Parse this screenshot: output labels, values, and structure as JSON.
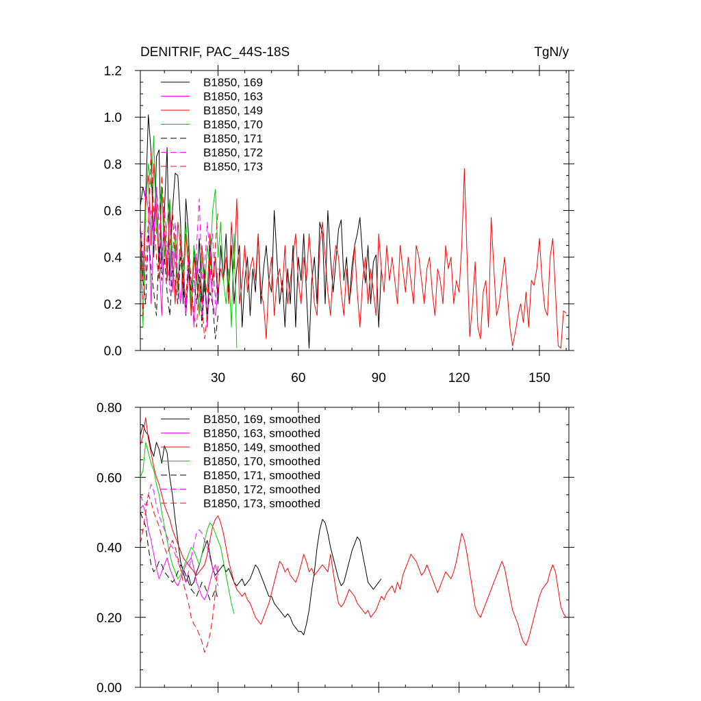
{
  "chart_data": [
    {
      "type": "line",
      "title_left": "DENITRIF, PAC_44S-18S",
      "title_right": "TgN/y",
      "xlim": [
        1,
        161
      ],
      "ylim": [
        0,
        1.2
      ],
      "xticks": [
        30,
        60,
        90,
        120,
        150
      ],
      "xtick_labels": [
        "30",
        "60",
        "90",
        "120",
        "150"
      ],
      "yticks": [
        0,
        0.2,
        0.4,
        0.6,
        0.8,
        1.0,
        1.2
      ],
      "ytick_labels": [
        "0.0",
        "0.2",
        "0.4",
        "0.6",
        "0.8",
        "1.0",
        "1.2"
      ],
      "series": [
        {
          "name": "B1850, 169",
          "color": "#000000",
          "dash": false,
          "values": [
            0.62,
            0.7,
            0.65,
            1.01,
            0.85,
            0.4,
            0.83,
            0.86,
            0.35,
            0.6,
            0.87,
            0.3,
            0.6,
            0.76,
            0.75,
            0.55,
            0.2,
            0.65,
            0.5,
            0.15,
            0.45,
            0.3,
            0.48,
            0.2,
            0.35,
            0.1,
            0.45,
            0.3,
            0.4,
            0.2,
            0.45,
            0.3,
            0.5,
            0.25,
            0.45,
            0.2,
            0.35,
            0.45,
            0.1,
            0.3,
            0.4,
            0.15,
            0.35,
            0.25,
            0.5,
            0.2,
            0.35,
            0.45,
            0.3,
            0.25,
            0.6,
            0.4,
            0.2,
            0.3,
            0.1,
            0.35,
            0.2,
            0.45,
            0.1,
            0.4,
            0.3,
            0.5,
            0.25,
            0.01,
            0.3,
            0.4,
            0.2,
            0.55,
            0.5,
            0.2,
            0.6,
            0.4,
            0.25,
            0.38,
            0.52,
            0.56,
            0.3,
            0.4,
            0.2,
            0.36,
            0.45,
            0.5,
            0.57,
            0.4,
            0.29,
            0.45,
            0.2,
            0.38,
            0.41,
            0.1,
            0.35
          ]
        },
        {
          "name": "B1850, 163",
          "color": "#ff00ff",
          "dash": false,
          "values": [
            0.45,
            0.3,
            0.7,
            0.6,
            0.2,
            0.55,
            0.7,
            0.4,
            0.15,
            0.5,
            0.35,
            0.6,
            0.25,
            0.45,
            0.3,
            0.2,
            0.4,
            0.15,
            0.35,
            0.3,
            0.1,
            0.4,
            0.25,
            0.15,
            0.3,
            0.1,
            0.35,
            0.2,
            0.15,
            0.25
          ]
        },
        {
          "name": "B1850, 149",
          "color": "#ff0000",
          "dash": false,
          "values": [
            0.55,
            0.3,
            0.65,
            0.75,
            0.45,
            0.8,
            0.6,
            0.35,
            0.7,
            0.5,
            0.3,
            0.65,
            0.4,
            0.2,
            0.55,
            0.45,
            0.25,
            0.5,
            0.35,
            0.15,
            0.4,
            0.3,
            0.15,
            0.45,
            0.3,
            0.25,
            0.5,
            0.3,
            0.4,
            0.25,
            0.35,
            0.3,
            0.4,
            0.2,
            0.55,
            0.35,
            0.65,
            0.2,
            0.3,
            0.45,
            0.25,
            0.35,
            0.4,
            0.3,
            0.5,
            0.25,
            0.2,
            0.05,
            0.3,
            0.4,
            0.15,
            0.3,
            0.35,
            0.25,
            0.45,
            0.2,
            0.3,
            0.4,
            0.5,
            0.3,
            0.2,
            0.4,
            0.3,
            0.5,
            0.35,
            0.2,
            0.15,
            0.45,
            0.55,
            0.4,
            0.25,
            0.15,
            0.35,
            0.45,
            0.4,
            0.25,
            0.15,
            0.35,
            0.2,
            0.3,
            0.45,
            0.25,
            0.1,
            0.3,
            0.4,
            0.2,
            0.35,
            0.25,
            0.15,
            0.5,
            0.35,
            0.25,
            0.45,
            0.3,
            0.4,
            0.3,
            0.2,
            0.45,
            0.35,
            0.25,
            0.4,
            0.3,
            0.2,
            0.45,
            0.4,
            0.3,
            0.2,
            0.35,
            0.4,
            0.25,
            0.15,
            0.35,
            0.3,
            0.2,
            0.45,
            0.35,
            0.4,
            0.2,
            0.3,
            0.25,
            0.45,
            0.78,
            0.4,
            0.06,
            0.2,
            0.38,
            0.1,
            0.05,
            0.25,
            0.3,
            0.1,
            0.57,
            0.35,
            0.15,
            0.2,
            0.3,
            0.4,
            0.25,
            0.1,
            0.02,
            0.08,
            0.15,
            0.2,
            0.12,
            0.25,
            0.1,
            0.3,
            0.28,
            0.35,
            0.48,
            0.3,
            0.18,
            0.15,
            0.4,
            0.48,
            0.25,
            0.02,
            0.01,
            0.17,
            0.16
          ]
        },
        {
          "name": "B1850, 170",
          "color": "#00cc00",
          "dash": false,
          "values": [
            0.5,
            0.1,
            0.6,
            0.8,
            0.7,
            0.92,
            0.5,
            0.6,
            0.7,
            0.4,
            0.55,
            0.65,
            0.35,
            0.5,
            0.25,
            0.45,
            0.3,
            0.55,
            0.4,
            0.2,
            0.45,
            0.35,
            0.15,
            0.4,
            0.25,
            0.45,
            0.35,
            0.6,
            0.69,
            0.4,
            0.55,
            0.3,
            0.2,
            0.35,
            0.1,
            0.5,
            0.01
          ]
        },
        {
          "name": "B1850, 171",
          "color": "#000000",
          "dash": true,
          "values": [
            0.55,
            0.3,
            0.2,
            0.5,
            0.35,
            0.25,
            0.15,
            0.45,
            0.3,
            0.4,
            0.25,
            0.15,
            0.35,
            0.3,
            0.2,
            0.4,
            0.3,
            0.15,
            0.35,
            0.25,
            0.3,
            0.2,
            0.35,
            0.1,
            0.3,
            0.15,
            0.25,
            0.2,
            0.05,
            0.15
          ]
        },
        {
          "name": "B1850, 172",
          "color": "#ff00ff",
          "dash": true,
          "values": [
            0.55,
            0.4,
            0.3,
            0.5,
            0.6,
            0.45,
            0.7,
            0.55,
            0.35,
            0.6,
            0.45,
            0.25,
            0.4,
            0.55,
            0.3,
            0.45,
            0.35,
            0.15,
            0.4,
            0.3,
            0.25,
            0.45,
            0.65,
            0.3,
            0.35,
            0.55,
            0.4,
            0.5,
            0.2,
            0.35
          ]
        },
        {
          "name": "B1850, 173",
          "color": "#ff0000",
          "dash": true,
          "values": [
            0.45,
            0.15,
            0.4,
            0.55,
            0.85,
            0.6,
            0.4,
            0.3,
            0.75,
            0.55,
            0.35,
            0.45,
            0.6,
            0.4,
            0.25,
            0.5,
            0.35,
            0.2,
            0.45,
            0.3,
            0.15,
            0.1,
            0.3,
            0.2,
            0.05,
            0.15,
            0.4,
            0.25,
            0.45,
            0.6
          ]
        }
      ]
    },
    {
      "type": "line",
      "xlim": [
        1,
        161
      ],
      "ylim": [
        0,
        0.8
      ],
      "xticks": [
        30,
        60,
        90,
        120,
        150
      ],
      "yticks": [
        0,
        0.2,
        0.4,
        0.6,
        0.8
      ],
      "ytick_labels": [
        "0.00",
        "0.20",
        "0.40",
        "0.60",
        "0.80"
      ],
      "series": [
        {
          "name": "B1850, 169, smoothed",
          "color": "#000000",
          "dash": false,
          "values": [
            0.72,
            0.75,
            0.73,
            0.72,
            0.68,
            0.66,
            0.7,
            0.68,
            0.64,
            0.69,
            0.67,
            0.6,
            0.55,
            0.48,
            0.42,
            0.36,
            0.33,
            0.3,
            0.32,
            0.29,
            0.3,
            0.33,
            0.35,
            0.38,
            0.4,
            0.42,
            0.38,
            0.34,
            0.32,
            0.33,
            0.34,
            0.35,
            0.33,
            0.34,
            0.32,
            0.3,
            0.29,
            0.3,
            0.31,
            0.29,
            0.3,
            0.31,
            0.33,
            0.35,
            0.34,
            0.32,
            0.3,
            0.28,
            0.26,
            0.26,
            0.24,
            0.23,
            0.22,
            0.21,
            0.2,
            0.21,
            0.2,
            0.18,
            0.17,
            0.16,
            0.16,
            0.15,
            0.18,
            0.22,
            0.28,
            0.33,
            0.4,
            0.45,
            0.48,
            0.47,
            0.44,
            0.4,
            0.37,
            0.34,
            0.31,
            0.29,
            0.3,
            0.33,
            0.36,
            0.39,
            0.41,
            0.43,
            0.42,
            0.38,
            0.34,
            0.3,
            0.29,
            0.28,
            0.29,
            0.3,
            0.31
          ]
        },
        {
          "name": "B1850, 163, smoothed",
          "color": "#ff00ff",
          "dash": false,
          "values": [
            0.51,
            0.52,
            0.5,
            0.45,
            0.42,
            0.38,
            0.34,
            0.31,
            0.33,
            0.35,
            0.37,
            0.34,
            0.32,
            0.3,
            0.29,
            0.31,
            0.33,
            0.35,
            0.36,
            0.37,
            0.34,
            0.3,
            0.28,
            0.26,
            0.25,
            0.27,
            0.3,
            0.33,
            0.35,
            0.32
          ]
        },
        {
          "name": "B1850, 149, smoothed",
          "color": "#ff0000",
          "dash": false,
          "values": [
            0.69,
            0.72,
            0.77,
            0.71,
            0.67,
            0.63,
            0.6,
            0.58,
            0.55,
            0.52,
            0.5,
            0.48,
            0.45,
            0.43,
            0.41,
            0.39,
            0.37,
            0.36,
            0.35,
            0.34,
            0.33,
            0.32,
            0.33,
            0.34,
            0.35,
            0.38,
            0.42,
            0.46,
            0.48,
            0.49,
            0.47,
            0.44,
            0.4,
            0.36,
            0.33,
            0.3,
            0.28,
            0.27,
            0.26,
            0.27,
            0.25,
            0.24,
            0.22,
            0.2,
            0.19,
            0.18,
            0.2,
            0.22,
            0.24,
            0.27,
            0.3,
            0.33,
            0.36,
            0.35,
            0.33,
            0.34,
            0.32,
            0.31,
            0.3,
            0.32,
            0.35,
            0.38,
            0.36,
            0.33,
            0.34,
            0.32,
            0.33,
            0.34,
            0.35,
            0.34,
            0.33,
            0.38,
            0.33,
            0.28,
            0.24,
            0.23,
            0.24,
            0.26,
            0.28,
            0.27,
            0.26,
            0.24,
            0.23,
            0.22,
            0.21,
            0.22,
            0.2,
            0.21,
            0.22,
            0.24,
            0.26,
            0.25,
            0.27,
            0.28,
            0.29,
            0.27,
            0.3,
            0.28,
            0.32,
            0.34,
            0.36,
            0.38,
            0.37,
            0.36,
            0.34,
            0.32,
            0.33,
            0.35,
            0.33,
            0.31,
            0.29,
            0.27,
            0.29,
            0.31,
            0.33,
            0.32,
            0.31,
            0.33,
            0.36,
            0.4,
            0.44,
            0.42,
            0.38,
            0.33,
            0.28,
            0.23,
            0.21,
            0.2,
            0.22,
            0.24,
            0.26,
            0.28,
            0.3,
            0.32,
            0.34,
            0.36,
            0.34,
            0.3,
            0.26,
            0.22,
            0.2,
            0.18,
            0.15,
            0.13,
            0.12,
            0.14,
            0.17,
            0.2,
            0.23,
            0.26,
            0.28,
            0.29,
            0.3,
            0.33,
            0.35,
            0.33,
            0.28,
            0.23,
            0.21,
            0.2
          ]
        },
        {
          "name": "B1850, 170, smoothed",
          "color": "#00cc00",
          "dash": false,
          "values": [
            0.6,
            0.62,
            0.7,
            0.67,
            0.64,
            0.62,
            0.58,
            0.55,
            0.5,
            0.46,
            0.42,
            0.38,
            0.35,
            0.33,
            0.31,
            0.32,
            0.34,
            0.36,
            0.38,
            0.4,
            0.39,
            0.37,
            0.35,
            0.38,
            0.42,
            0.45,
            0.47,
            0.46,
            0.44,
            0.42,
            0.4,
            0.36,
            0.32,
            0.28,
            0.24,
            0.21
          ]
        },
        {
          "name": "B1850, 171, smoothed",
          "color": "#000000",
          "dash": true,
          "values": [
            0.5,
            0.48,
            0.46,
            0.4,
            0.35,
            0.33,
            0.34,
            0.36,
            0.35,
            0.33,
            0.32,
            0.31,
            0.3,
            0.31,
            0.33,
            0.35,
            0.34,
            0.32,
            0.3,
            0.28,
            0.27,
            0.26,
            0.28,
            0.3,
            0.29,
            0.27,
            0.25,
            0.26,
            0.28,
            0.25
          ]
        },
        {
          "name": "B1850, 172, smoothed",
          "color": "#ff00ff",
          "dash": true,
          "values": [
            0.55,
            0.53,
            0.52,
            0.55,
            0.58,
            0.56,
            0.52,
            0.49,
            0.47,
            0.45,
            0.43,
            0.41,
            0.4,
            0.38,
            0.36,
            0.34,
            0.32,
            0.3,
            0.33,
            0.37,
            0.41,
            0.44,
            0.45,
            0.44,
            0.42,
            0.4,
            0.37,
            0.34,
            0.31,
            0.29
          ]
        },
        {
          "name": "B1850, 173, smoothed",
          "color": "#ff0000",
          "dash": true,
          "values": [
            0.41,
            0.45,
            0.5,
            0.55,
            0.53,
            0.5,
            0.48,
            0.46,
            0.43,
            0.4,
            0.38,
            0.4,
            0.42,
            0.4,
            0.37,
            0.34,
            0.3,
            0.27,
            0.24,
            0.2,
            0.18,
            0.17,
            0.15,
            0.13,
            0.1,
            0.12,
            0.15,
            0.2,
            0.27,
            0.35
          ]
        }
      ]
    }
  ]
}
